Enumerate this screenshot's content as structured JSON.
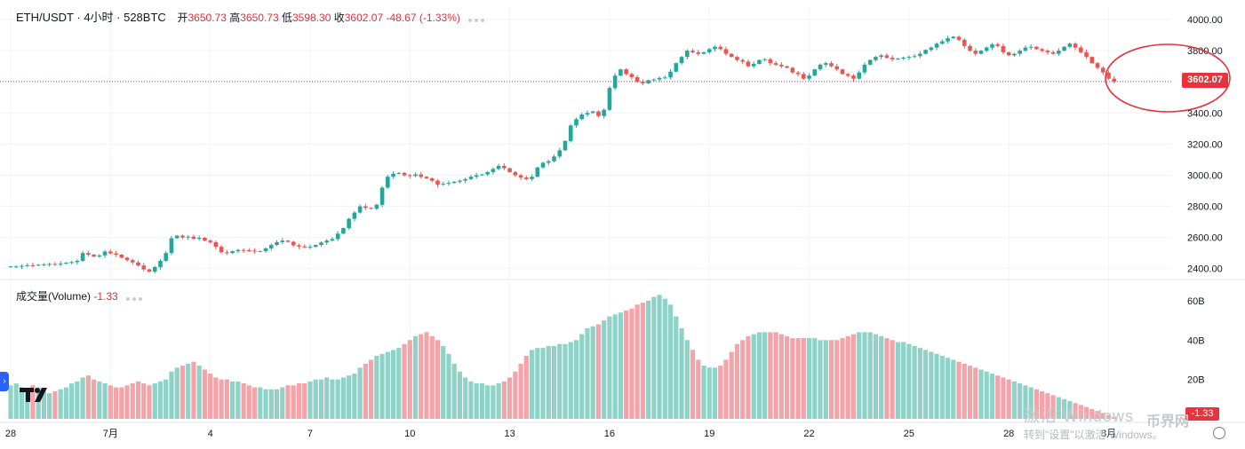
{
  "header": {
    "symbol": "ETH/USDT · 4小时 · 528BTC",
    "open_label": "开",
    "open_value": "3650.73",
    "high_label": "高",
    "high_value": "3650.73",
    "low_label": "低",
    "low_value": "3598.30",
    "close_label": "收",
    "close_value": "3602.07",
    "change": "-48.67 (-1.33%)"
  },
  "volume_panel": {
    "title": "成交量(Volume)",
    "value": "-1.33"
  },
  "price_tag": "3602.07",
  "volume_tag": "-1.33",
  "watermark": {
    "line1": "激活 Windows",
    "line2": "转到\"设置\"以激活 Windows。",
    "brand": "币界网"
  },
  "colors": {
    "up": "#26a69a",
    "down": "#ef5350",
    "vol_up": "#8fd3c8",
    "vol_down": "#f4a3a8",
    "highlight": "#e8323c",
    "grid": "#f0f3fa"
  },
  "chart_data": [
    {
      "type": "candlestick",
      "title": "ETH/USDT · 4小时 · 528BTC",
      "y_axis_ticks": [
        "4000.00",
        "3800.00",
        "3600.00",
        "3400.00",
        "3200.00",
        "3000.00",
        "2800.00",
        "2600.00",
        "2400.00"
      ],
      "ylim": [
        2330,
        4080
      ],
      "x_ticks": [
        "28",
        "7月",
        "4",
        "7",
        "10",
        "13",
        "16",
        "19",
        "22",
        "25",
        "28",
        "8月"
      ],
      "x_tick_positions": [
        0,
        18,
        36,
        54,
        72,
        90,
        108,
        126,
        144,
        162,
        180,
        198
      ],
      "last_price": 3602.07,
      "close_series": [
        2414,
        2414,
        2418,
        2422,
        2420,
        2425,
        2428,
        2430,
        2426,
        2432,
        2438,
        2442,
        2450,
        2500,
        2490,
        2478,
        2485,
        2510,
        2498,
        2490,
        2470,
        2455,
        2440,
        2420,
        2395,
        2380,
        2410,
        2450,
        2500,
        2595,
        2612,
        2600,
        2605,
        2592,
        2598,
        2580,
        2570,
        2540,
        2505,
        2500,
        2512,
        2520,
        2518,
        2515,
        2510,
        2512,
        2530,
        2552,
        2570,
        2580,
        2572,
        2550,
        2542,
        2538,
        2540,
        2552,
        2568,
        2580,
        2590,
        2625,
        2660,
        2720,
        2760,
        2800,
        2790,
        2785,
        2810,
        2920,
        2990,
        3010,
        3015,
        3000,
        2995,
        3005,
        2990,
        2980,
        2965,
        2940,
        2945,
        2950,
        2958,
        2965,
        2975,
        2990,
        3000,
        3005,
        3020,
        3040,
        3060,
        3045,
        3020,
        3000,
        2985,
        2975,
        2990,
        3050,
        3080,
        3090,
        3120,
        3160,
        3220,
        3320,
        3360,
        3390,
        3400,
        3410,
        3380,
        3420,
        3560,
        3640,
        3680,
        3650,
        3630,
        3600,
        3590,
        3610,
        3615,
        3625,
        3628,
        3665,
        3720,
        3760,
        3800,
        3790,
        3780,
        3790,
        3810,
        3825,
        3810,
        3780,
        3760,
        3740,
        3730,
        3700,
        3715,
        3740,
        3745,
        3720,
        3710,
        3700,
        3690,
        3660,
        3650,
        3620,
        3640,
        3680,
        3710,
        3720,
        3700,
        3680,
        3650,
        3640,
        3620,
        3660,
        3710,
        3740,
        3760,
        3770,
        3755,
        3745,
        3750,
        3755,
        3760,
        3765,
        3780,
        3805,
        3820,
        3845,
        3860,
        3880,
        3890,
        3870,
        3830,
        3800,
        3780,
        3800,
        3820,
        3840,
        3830,
        3790,
        3770,
        3780,
        3800,
        3820,
        3825,
        3810,
        3800,
        3790,
        3780,
        3800,
        3825,
        3845,
        3820,
        3790,
        3760,
        3720,
        3690,
        3660,
        3620,
        3602
      ]
    },
    {
      "type": "bar",
      "title": "成交量(Volume)",
      "y_axis_ticks": [
        "60B",
        "40B",
        "20B"
      ],
      "ylim": [
        0,
        64
      ],
      "unit": "B",
      "values": [
        17,
        18,
        16,
        15,
        17,
        16,
        14,
        13,
        14,
        15,
        16,
        18,
        19,
        21,
        22,
        20,
        19,
        18,
        17,
        16,
        16,
        17,
        18,
        19,
        18,
        17,
        18,
        19,
        20,
        24,
        26,
        27,
        28,
        29,
        27,
        25,
        23,
        21,
        20,
        20,
        19,
        19,
        18,
        17,
        16,
        16,
        15,
        15,
        15,
        16,
        17,
        17,
        18,
        18,
        19,
        20,
        20,
        21,
        20,
        20,
        21,
        22,
        23,
        26,
        28,
        30,
        32,
        33,
        34,
        35,
        36,
        38,
        40,
        42,
        43,
        44,
        42,
        40,
        37,
        33,
        28,
        24,
        21,
        19,
        18,
        18,
        17,
        17,
        18,
        19,
        21,
        24,
        28,
        32,
        35,
        36,
        36,
        37,
        37,
        38,
        38,
        39,
        40,
        43,
        46,
        47,
        48,
        50,
        52,
        53,
        54,
        55,
        56,
        58,
        59,
        60,
        62,
        63,
        61,
        58,
        52,
        46,
        40,
        35,
        30,
        27,
        26,
        26,
        27,
        30,
        34,
        38,
        40,
        42,
        43,
        44,
        44,
        44,
        44,
        43,
        42,
        41,
        41,
        41,
        41,
        41,
        40,
        40,
        40,
        40,
        41,
        42,
        43,
        44,
        44,
        44,
        43,
        42,
        41,
        40,
        39,
        39,
        38,
        37,
        36,
        35,
        34,
        33,
        32,
        31,
        30,
        29,
        28,
        27,
        26,
        25,
        24,
        23,
        22,
        21,
        20,
        19,
        18,
        17,
        16,
        15,
        14,
        13,
        12,
        11,
        10,
        9,
        8,
        7,
        6,
        5,
        4,
        3,
        2,
        1
      ],
      "last_value": -1.33
    }
  ]
}
